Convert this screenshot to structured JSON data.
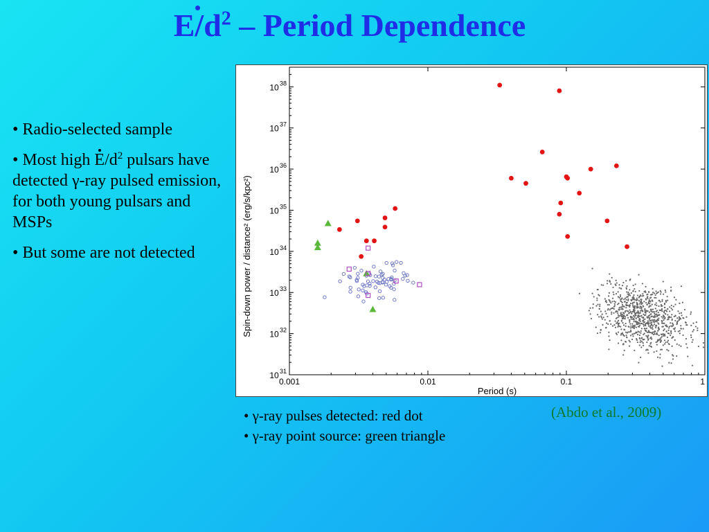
{
  "slide": {
    "title_main": "E/d",
    "title_sup": "2",
    "title_rest": " – Period Dependence"
  },
  "bullets": {
    "b1": "• Radio-selected sample",
    "b2_a": "• Most high ",
    "b2_e": "E",
    "b2_b": "/d",
    "b2_sup": "2",
    "b2_c": " pulsars have detected γ-ray pulsed emission, for both young pulsars and MSPs",
    "b3": "• But some are not detected"
  },
  "legend": {
    "line1": "• γ-ray pulses detected: red dot",
    "line2": "• γ-ray point source: green triangle"
  },
  "citation": "(Abdo et al., 2009)",
  "colors": {
    "title": "#1f2ee6",
    "red": "#e41414",
    "green": "#5cb83a",
    "blue_open": "#6f78c8",
    "purple_open": "#b04cc4",
    "gray": "#666666",
    "citation": "#0f7a2a"
  },
  "chart_data": {
    "type": "scatter",
    "xlabel": "Period (s)",
    "ylabel": "Spin-down power / distance² (erg/s/kpc²)",
    "xscale": "log",
    "yscale": "log",
    "xlim": [
      0.001,
      1
    ],
    "ylim": [
      1e+31,
      3e+38
    ],
    "x_ticks": [
      "0.001",
      "0.01",
      "0.1",
      "1"
    ],
    "y_ticks": [
      {
        "base": "10",
        "exp": "31"
      },
      {
        "base": "10",
        "exp": "32"
      },
      {
        "base": "10",
        "exp": "33"
      },
      {
        "base": "10",
        "exp": "34"
      },
      {
        "base": "10",
        "exp": "35"
      },
      {
        "base": "10",
        "exp": "36"
      },
      {
        "base": "10",
        "exp": "37"
      },
      {
        "base": "10",
        "exp": "38"
      }
    ],
    "series": [
      {
        "marker": "red-dot",
        "points": [
          [
            0.033,
            1.1e+38
          ],
          [
            0.089,
            8e+37
          ],
          [
            0.067,
            2.6e+36
          ],
          [
            0.15,
            1e+36
          ],
          [
            0.23,
            1.2e+36
          ],
          [
            0.04,
            6e+35
          ],
          [
            0.051,
            4.5e+35
          ],
          [
            0.102,
            6e+35
          ],
          [
            0.1,
            6.5e+35
          ],
          [
            0.124,
            2.6e+35
          ],
          [
            0.091,
            1.5e+35
          ],
          [
            0.089,
            8e+34
          ],
          [
            0.197,
            5.5e+34
          ],
          [
            0.102,
            2.3e+34
          ],
          [
            0.274,
            1.3e+34
          ],
          [
            0.0023,
            3.4e+34
          ],
          [
            0.0031,
            5.5e+34
          ],
          [
            0.0049,
            6.5e+34
          ],
          [
            0.0058,
            1.1e+35
          ],
          [
            0.0049,
            3.9e+34
          ],
          [
            0.0033,
            7.5e+33
          ],
          [
            0.0036,
            1.8e+34
          ],
          [
            0.0041,
            1.8e+34
          ]
        ]
      },
      {
        "marker": "green-triangle",
        "points": [
          [
            0.0019,
            4.8e+34
          ],
          [
            0.0016,
            1.6e+34
          ],
          [
            0.0016,
            1.25e+34
          ],
          [
            0.0036,
            2.9e+33
          ],
          [
            0.004,
            3.9e+32
          ]
        ]
      },
      {
        "marker": "open-square",
        "points": [
          [
            0.0027,
            3.7e+33
          ],
          [
            0.0037,
            1.2e+34
          ],
          [
            0.0037,
            2.9e+33
          ],
          [
            0.0037,
            8.5e+32
          ],
          [
            0.0059,
            1.9e+33
          ],
          [
            0.0087,
            1.55e+33
          ]
        ]
      }
    ]
  }
}
